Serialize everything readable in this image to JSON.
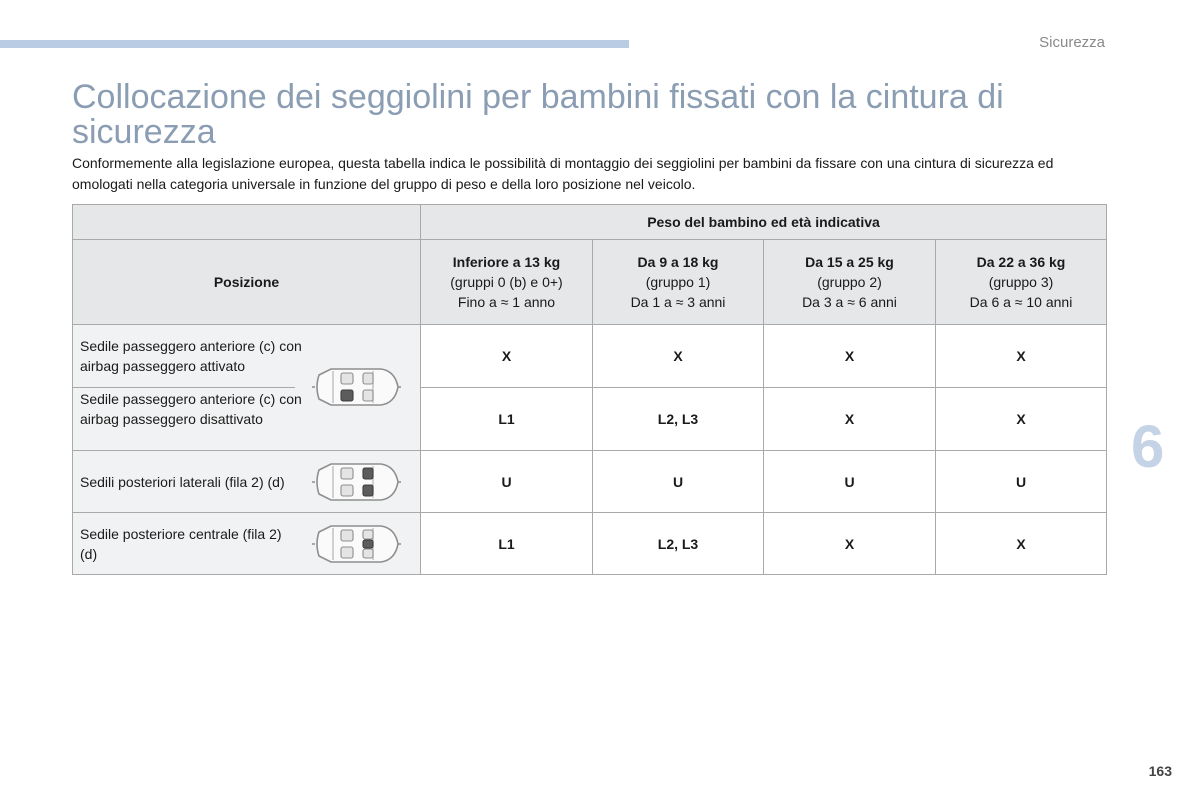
{
  "header": {
    "section": "Sicurezza"
  },
  "title": "Collocazione dei seggiolini per bambini fissati con la cintura di sicurezza",
  "intro": "Conformemente alla legislazione europea, questa tabella indica le possibilità di montaggio dei seggiolini per bambini da fissare con una cintura di sicurezza ed omologati nella categoria universale in funzione del gruppo di peso e della loro posizione nel veicolo.",
  "table": {
    "weight_header": "Peso del bambino ed età indicativa",
    "position_header": "Posizione",
    "groups": [
      {
        "name": "Inferiore a 13 kg",
        "sub": "(gruppi 0 (b) e 0+)",
        "age": "Fino a ≈ 1 anno"
      },
      {
        "name": "Da 9 a 18 kg",
        "sub": "(gruppo 1)",
        "age": "Da 1 a ≈ 3 anni"
      },
      {
        "name": "Da 15 a 25 kg",
        "sub": "(gruppo 2)",
        "age": "Da 3 a ≈ 6 anni"
      },
      {
        "name": "Da 22 a 36 kg",
        "sub": "(gruppo 3)",
        "age": "Da 6 a ≈ 10 anni"
      }
    ],
    "rows": [
      {
        "position": "Sedile passeggero anteriore (c) con airbag passeggero attivato",
        "values": [
          "X",
          "X",
          "X",
          "X"
        ]
      },
      {
        "position": "Sedile passeggero anteriore (c) con airbag passeggero disattivato",
        "values": [
          "L1",
          "L2, L3",
          "X",
          "X"
        ]
      },
      {
        "position": "Sedili posteriori laterali (fila 2) (d)",
        "values": [
          "U",
          "U",
          "U",
          "U"
        ]
      },
      {
        "position": "Sedile posteriore centrale (fila 2) (d)",
        "values": [
          "L1",
          "L2, L3",
          "X",
          "X"
        ]
      }
    ],
    "icons": [
      "car-front-seat-icon",
      "car-rear-outer-seats-icon",
      "car-rear-center-seat-icon"
    ]
  },
  "chapter": "6",
  "page_number": "163"
}
